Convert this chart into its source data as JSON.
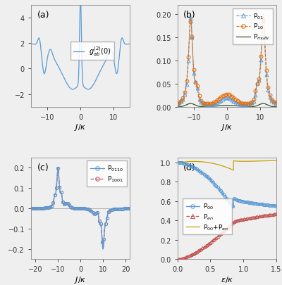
{
  "panel_a": {
    "label": "(a)",
    "xlabel": "J/\\kappa",
    "xlim": [
      -15,
      15
    ],
    "ylim": [
      -3,
      5
    ],
    "yticks": [
      -2,
      0,
      2,
      4
    ],
    "xticks": [
      -10,
      0,
      10
    ],
    "color": "#5b9bd5"
  },
  "panel_b": {
    "label": "(b)",
    "xlabel": "J/\\kappa",
    "legends": [
      "P$_{01}$",
      "P$_{10}$",
      "P$_{multi}$"
    ],
    "xlim": [
      -15,
      15
    ],
    "ylim": [
      0,
      0.22
    ],
    "yticks": [
      0,
      0.05,
      0.1,
      0.15,
      0.2
    ],
    "xticks": [
      -10,
      0,
      10
    ],
    "colors": [
      "#5b9bd5",
      "#e36c09",
      "#375623"
    ]
  },
  "panel_c": {
    "label": "(c)",
    "xlabel": "J/\\kappa",
    "legends": [
      "P$_{0110}$",
      "P$_{1001}$"
    ],
    "xlim": [
      -22,
      22
    ],
    "ylim": [
      -0.25,
      0.25
    ],
    "yticks": [
      -0.2,
      -0.1,
      0,
      0.1,
      0.2
    ],
    "xticks": [
      -20,
      -10,
      0,
      10,
      20
    ],
    "colors": [
      "#5b9bd5",
      "#c0504d"
    ]
  },
  "panel_d": {
    "label": "(d)",
    "xlabel": "\\varepsilon/\\kappa",
    "legends": [
      "P$_{00}$",
      "P$_{en}$",
      "P$_{00}$+P$_{en}$"
    ],
    "xlim": [
      0,
      1.5
    ],
    "ylim": [
      0,
      1.05
    ],
    "yticks": [
      0.0,
      0.2,
      0.4,
      0.6,
      0.8,
      1.0
    ],
    "xticks": [
      0.0,
      0.5,
      1.0,
      1.5
    ],
    "colors": [
      "#5b9bd5",
      "#c0504d",
      "#c8a000"
    ]
  },
  "bg_color": "#efefef"
}
